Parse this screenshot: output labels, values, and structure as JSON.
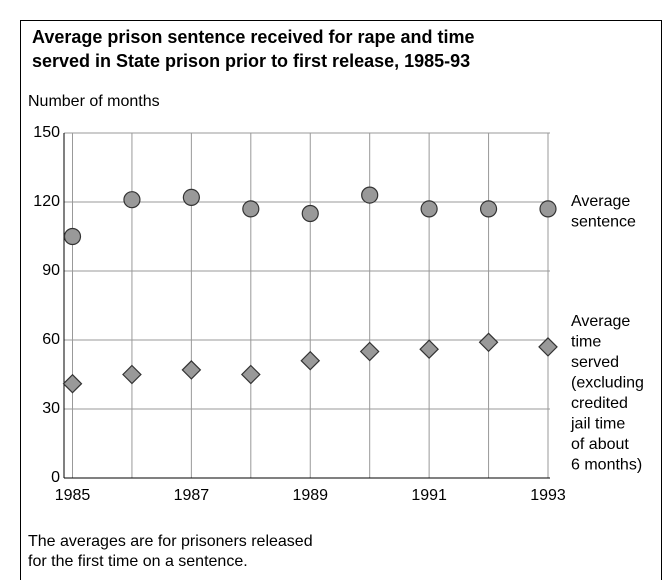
{
  "chart_data": {
    "type": "scatter",
    "title": [
      "Average prison sentence received for rape and time",
      "served in State prison prior to first release, 1985-93"
    ],
    "y_label": "Number of months",
    "x": [
      1985,
      1986,
      1987,
      1988,
      1989,
      1990,
      1991,
      1992,
      1993
    ],
    "xlim": [
      1985,
      1993
    ],
    "xticks": [
      1985,
      1987,
      1989,
      1991,
      1993
    ],
    "ylim": [
      0,
      150
    ],
    "yticks": [
      0,
      30,
      60,
      90,
      120,
      150
    ],
    "grid": true,
    "series": [
      {
        "label": [
          "Average",
          "sentence"
        ],
        "marker": "circle",
        "color": "#999999",
        "values": [
          105,
          121,
          122,
          117,
          115,
          123,
          117,
          117,
          117
        ]
      },
      {
        "label": [
          "Average",
          "time",
          "served",
          "(excluding",
          "credited",
          "jail time",
          "of about",
          "6 months)"
        ],
        "marker": "diamond",
        "color": "#999999",
        "values": [
          41,
          45,
          47,
          45,
          51,
          55,
          56,
          59,
          57
        ]
      }
    ],
    "note": [
      "The averages are for prisoners released",
      "for the first time on a sentence."
    ]
  }
}
